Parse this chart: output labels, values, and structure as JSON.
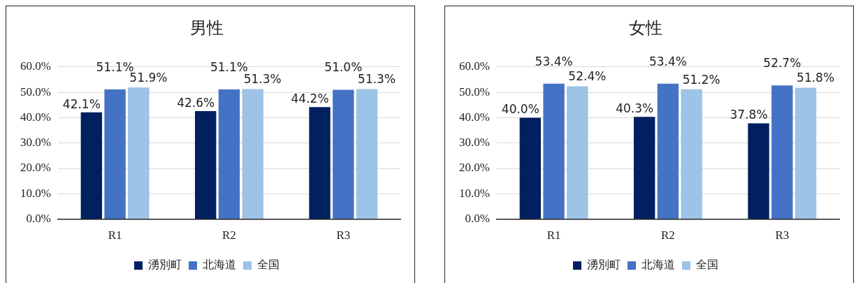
{
  "chart_data": [
    {
      "type": "bar",
      "title": "男性",
      "categories": [
        "R1",
        "R2",
        "R3"
      ],
      "series": [
        {
          "name": "湧別町",
          "color": "#002060",
          "values": [
            42.1,
            42.6,
            44.2
          ],
          "value_labels": [
            "42.1%",
            "42.6%",
            "44.2%"
          ]
        },
        {
          "name": "北海道",
          "color": "#4472c4",
          "values": [
            51.1,
            51.1,
            51.0
          ],
          "value_labels": [
            "51.1%",
            "51.1%",
            "51.0%"
          ]
        },
        {
          "name": "全国",
          "color": "#9dc3e6",
          "values": [
            51.9,
            51.3,
            51.3
          ],
          "value_labels": [
            "51.9%",
            "51.3%",
            "51.3%"
          ]
        }
      ],
      "ylim": [
        0,
        60
      ],
      "yticks": [
        {
          "value": 0,
          "label": "0.0%"
        },
        {
          "value": 10,
          "label": "10.0%"
        },
        {
          "value": 20,
          "label": "20.0%"
        },
        {
          "value": 30,
          "label": "30.0%"
        },
        {
          "value": 40,
          "label": "40.0%"
        },
        {
          "value": 50,
          "label": "50.0%"
        },
        {
          "value": 60,
          "label": "60.0%"
        }
      ],
      "grid": "y",
      "legend": "bottom"
    },
    {
      "type": "bar",
      "title": "女性",
      "categories": [
        "R1",
        "R2",
        "R3"
      ],
      "series": [
        {
          "name": "湧別町",
          "color": "#002060",
          "values": [
            40.0,
            40.3,
            37.8
          ],
          "value_labels": [
            "40.0%",
            "40.3%",
            "37.8%"
          ]
        },
        {
          "name": "北海道",
          "color": "#4472c4",
          "values": [
            53.4,
            53.4,
            52.7
          ],
          "value_labels": [
            "53.4%",
            "53.4%",
            "52.7%"
          ]
        },
        {
          "name": "全国",
          "color": "#9dc3e6",
          "values": [
            52.4,
            51.2,
            51.8
          ],
          "value_labels": [
            "52.4%",
            "51.2%",
            "51.8%"
          ]
        }
      ],
      "ylim": [
        0,
        60
      ],
      "yticks": [
        {
          "value": 0,
          "label": "0.0%"
        },
        {
          "value": 10,
          "label": "10.0%"
        },
        {
          "value": 20,
          "label": "20.0%"
        },
        {
          "value": 30,
          "label": "30.0%"
        },
        {
          "value": 40,
          "label": "40.0%"
        },
        {
          "value": 50,
          "label": "50.0%"
        },
        {
          "value": 60,
          "label": "60.0%"
        }
      ],
      "grid": "y",
      "legend": "bottom"
    }
  ]
}
